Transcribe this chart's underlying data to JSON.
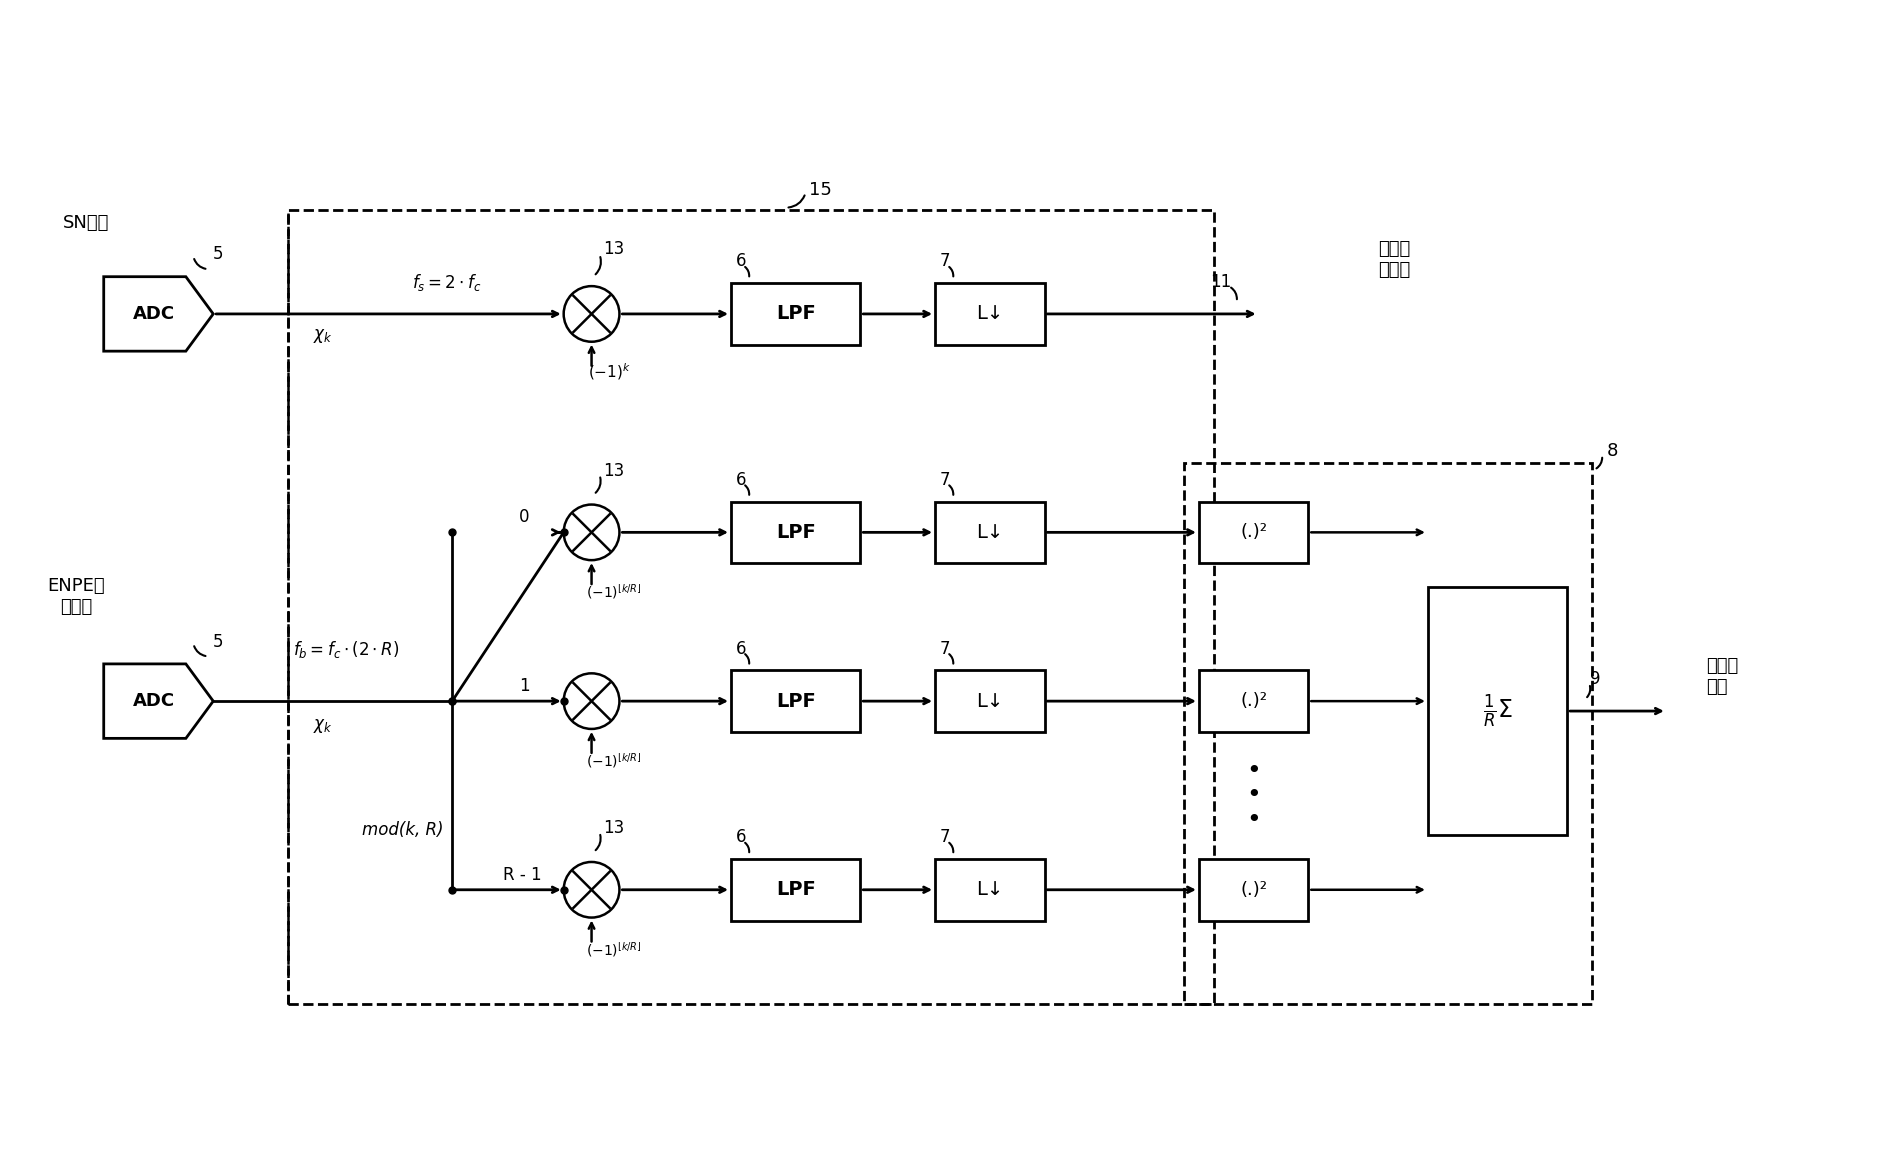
{
  "bg_color": "#ffffff",
  "line_color": "#000000",
  "dashed_color": "#000000",
  "box_fill": "#ffffff",
  "text_color": "#000000",
  "labels": {
    "sn_scan": "SN扫描",
    "enpe_scan": "ENPE噪\n声扫描",
    "to_touch": "到触摸\n检测器",
    "to_config": "到配置\n电路",
    "adc": "ADC",
    "lpf": "LPF",
    "decimator": "L↓",
    "square": "(.)²",
    "fs_label": "$f_s = 2 \\cdot f_c$",
    "fb_label": "$f_b = f_c \\cdot (2 \\cdot R)$",
    "xk": "$\\chi_k$",
    "minus1k": "$(-1)^k$",
    "mod_label": "mod(k, R)",
    "label_0": "0",
    "label_1": "1",
    "label_R1": "R - 1",
    "k_over_R": "$(-1)^{\\lfloor k/R \\rfloor}$",
    "sum_block": "$\\frac{1}{R}\\Sigma$"
  }
}
